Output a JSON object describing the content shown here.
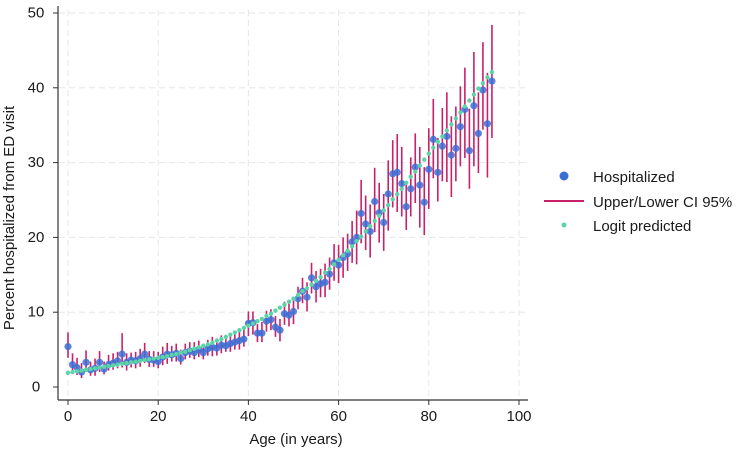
{
  "chart_data": {
    "type": "scatter",
    "title": "",
    "xlabel": "Age (in years)",
    "ylabel": "Percent hospitalized from ED visit",
    "xlim": [
      0,
      100
    ],
    "ylim": [
      0,
      50
    ],
    "x_ticks": [
      0,
      20,
      40,
      60,
      80,
      100
    ],
    "y_ticks": [
      0,
      10,
      20,
      30,
      40,
      50
    ],
    "x_tick_labels": [
      "0",
      "20",
      "40",
      "60",
      "80",
      "100"
    ],
    "y_tick_labels": [
      "0",
      "10",
      "20",
      "30",
      "40",
      "50"
    ],
    "grid": true,
    "legend_position": "right",
    "legend": {
      "hospitalized": "Hospitalized",
      "ci": "Upper/Lower CI 95%",
      "predicted": "Logit predicted"
    },
    "colors": {
      "hospitalized": "#3b6fd6",
      "ci": "#c8206a",
      "predicted": "#5fd3a8",
      "grid": "#e6e6e6",
      "axis": "#333333"
    },
    "series": [
      {
        "name": "Hospitalized",
        "kind": "points",
        "x": [
          0,
          1,
          2,
          3,
          4,
          5,
          6,
          7,
          8,
          9,
          10,
          11,
          12,
          13,
          14,
          15,
          16,
          17,
          18,
          19,
          20,
          21,
          22,
          23,
          24,
          25,
          26,
          27,
          28,
          29,
          30,
          31,
          32,
          33,
          34,
          35,
          36,
          37,
          38,
          39,
          40,
          41,
          42,
          43,
          44,
          45,
          46,
          47,
          48,
          49,
          50,
          51,
          52,
          53,
          54,
          55,
          56,
          57,
          58,
          59,
          60,
          61,
          62,
          63,
          64,
          65,
          66,
          67,
          68,
          69,
          70,
          71,
          72,
          73,
          74,
          75,
          76,
          77,
          78,
          79,
          80,
          81,
          82,
          83,
          84,
          85,
          86,
          87,
          88,
          89,
          90,
          91,
          92,
          93,
          94
        ],
        "y": [
          5.4,
          3.0,
          2.6,
          2.0,
          3.3,
          2.3,
          2.5,
          3.3,
          2.4,
          3.0,
          3.2,
          3.5,
          4.4,
          3.3,
          3.6,
          3.5,
          3.8,
          4.4,
          3.7,
          3.6,
          3.4,
          4.0,
          4.4,
          4.3,
          4.5,
          3.8,
          4.6,
          4.8,
          4.6,
          5.0,
          4.6,
          5.1,
          5.3,
          5.2,
          5.6,
          5.5,
          5.8,
          6.0,
          6.2,
          6.4,
          8.5,
          8.6,
          7.2,
          7.2,
          8.8,
          9.0,
          8.0,
          7.6,
          9.8,
          9.6,
          10.1,
          11.8,
          12.8,
          12.0,
          14.6,
          13.4,
          13.8,
          14.0,
          15.1,
          16.6,
          16.3,
          17.3,
          17.8,
          19.4,
          20.0,
          23.2,
          21.8,
          20.8,
          24.8,
          23.3,
          22.0,
          25.8,
          28.5,
          28.7,
          27.2,
          24.1,
          26.5,
          29.4,
          27.0,
          24.7,
          29.1,
          33.1,
          28.7,
          32.2,
          33.5,
          31.0,
          31.9,
          34.8,
          37.1,
          31.6,
          37.6,
          33.9,
          39.7,
          35.2,
          40.9
        ]
      },
      {
        "name": "Upper/Lower CI 95%",
        "kind": "error-bars",
        "x": [
          0,
          1,
          2,
          3,
          4,
          5,
          6,
          7,
          8,
          9,
          10,
          11,
          12,
          13,
          14,
          15,
          16,
          17,
          18,
          19,
          20,
          21,
          22,
          23,
          24,
          25,
          26,
          27,
          28,
          29,
          30,
          31,
          32,
          33,
          34,
          35,
          36,
          37,
          38,
          39,
          40,
          41,
          42,
          43,
          44,
          45,
          46,
          47,
          48,
          49,
          50,
          51,
          52,
          53,
          54,
          55,
          56,
          57,
          58,
          59,
          60,
          61,
          62,
          63,
          64,
          65,
          66,
          67,
          68,
          69,
          70,
          71,
          72,
          73,
          74,
          75,
          76,
          77,
          78,
          79,
          80,
          81,
          82,
          83,
          84,
          85,
          86,
          87,
          88,
          89,
          90,
          91,
          92,
          93,
          94
        ],
        "lower": [
          3.9,
          1.9,
          1.6,
          1.2,
          2.0,
          1.5,
          1.5,
          2.0,
          1.7,
          2.2,
          2.3,
          2.5,
          2.6,
          2.2,
          2.6,
          2.5,
          2.7,
          3.2,
          2.7,
          2.7,
          2.5,
          2.9,
          3.1,
          3.4,
          3.4,
          3.0,
          3.7,
          3.9,
          3.7,
          4.0,
          3.7,
          4.2,
          4.1,
          4.2,
          4.5,
          4.7,
          4.7,
          5.0,
          5.0,
          5.4,
          6.8,
          7.0,
          6.0,
          6.0,
          7.4,
          7.6,
          6.7,
          6.1,
          8.3,
          8.1,
          8.4,
          10.4,
          11.2,
          10.1,
          12.5,
          11.3,
          12.0,
          12.0,
          13.0,
          14.2,
          13.9,
          14.6,
          15.5,
          16.6,
          16.4,
          19.2,
          18.3,
          17.3,
          20.7,
          19.3,
          18.2,
          20.9,
          24.0,
          23.4,
          22.8,
          21.0,
          22.8,
          24.6,
          21.3,
          20.3,
          23.8,
          27.9,
          24.8,
          27.5,
          27.4,
          25.4,
          27.5,
          29.5,
          30.6,
          26.5,
          29.5,
          28.6,
          34.4,
          28.0,
          33.3
        ],
        "upper": [
          7.3,
          4.5,
          3.9,
          3.2,
          4.9,
          3.4,
          3.8,
          4.8,
          3.4,
          4.3,
          4.5,
          4.7,
          7.2,
          4.5,
          4.6,
          4.7,
          5.1,
          5.9,
          4.8,
          4.8,
          4.7,
          5.4,
          5.9,
          5.5,
          5.8,
          5.0,
          5.8,
          6.0,
          6.0,
          6.2,
          5.8,
          6.3,
          6.7,
          6.5,
          6.9,
          6.6,
          7.1,
          7.2,
          7.6,
          7.8,
          10.1,
          10.1,
          8.4,
          8.7,
          10.2,
          10.4,
          9.5,
          9.1,
          11.4,
          11.3,
          11.8,
          13.4,
          14.6,
          14.0,
          16.6,
          15.5,
          15.8,
          16.5,
          17.3,
          19.1,
          19.0,
          20.0,
          20.5,
          22.2,
          23.6,
          27.7,
          25.6,
          24.4,
          29.3,
          27.3,
          25.8,
          30.3,
          33.0,
          33.8,
          32.1,
          27.5,
          30.7,
          33.9,
          32.1,
          29.4,
          34.6,
          38.5,
          33.3,
          37.3,
          39.4,
          36.2,
          37.5,
          40.2,
          42.7,
          37.2,
          44.8,
          39.4,
          46.1,
          42.0,
          48.4
        ]
      },
      {
        "name": "Logit predicted",
        "kind": "markers",
        "x": [
          0,
          1,
          2,
          3,
          4,
          5,
          6,
          7,
          8,
          9,
          10,
          11,
          12,
          13,
          14,
          15,
          16,
          17,
          18,
          19,
          20,
          21,
          22,
          23,
          24,
          25,
          26,
          27,
          28,
          29,
          30,
          31,
          32,
          33,
          34,
          35,
          36,
          37,
          38,
          39,
          40,
          41,
          42,
          43,
          44,
          45,
          46,
          47,
          48,
          49,
          50,
          51,
          52,
          53,
          54,
          55,
          56,
          57,
          58,
          59,
          60,
          61,
          62,
          63,
          64,
          65,
          66,
          67,
          68,
          69,
          70,
          71,
          72,
          73,
          74,
          75,
          76,
          77,
          78,
          79,
          80,
          81,
          82,
          83,
          84,
          85,
          86,
          87,
          88,
          89,
          90,
          91,
          92,
          93,
          94
        ],
        "y": [
          1.9,
          2.0,
          2.1,
          2.2,
          2.3,
          2.4,
          2.5,
          2.6,
          2.7,
          2.8,
          2.9,
          3.0,
          3.1,
          3.2,
          3.3,
          3.4,
          3.5,
          3.6,
          3.7,
          3.8,
          3.9,
          4.0,
          4.1,
          4.3,
          4.4,
          4.6,
          4.7,
          4.9,
          5.1,
          5.3,
          5.5,
          5.7,
          5.9,
          6.2,
          6.4,
          6.7,
          7.0,
          7.3,
          7.6,
          7.9,
          8.2,
          8.5,
          8.8,
          9.1,
          9.5,
          9.8,
          10.2,
          10.6,
          11.0,
          11.4,
          11.8,
          12.3,
          12.8,
          13.2,
          13.7,
          14.2,
          14.7,
          15.3,
          15.8,
          16.4,
          17.0,
          17.6,
          18.2,
          18.8,
          19.5,
          20.1,
          20.8,
          21.5,
          22.2,
          22.9,
          23.6,
          24.3,
          25.1,
          25.8,
          26.5,
          27.3,
          28.1,
          28.8,
          29.6,
          30.4,
          31.2,
          32.0,
          32.8,
          33.5,
          34.3,
          35.1,
          35.9,
          36.7,
          37.5,
          38.3,
          39.1,
          39.9,
          40.6,
          41.4,
          42.1
        ]
      }
    ]
  }
}
